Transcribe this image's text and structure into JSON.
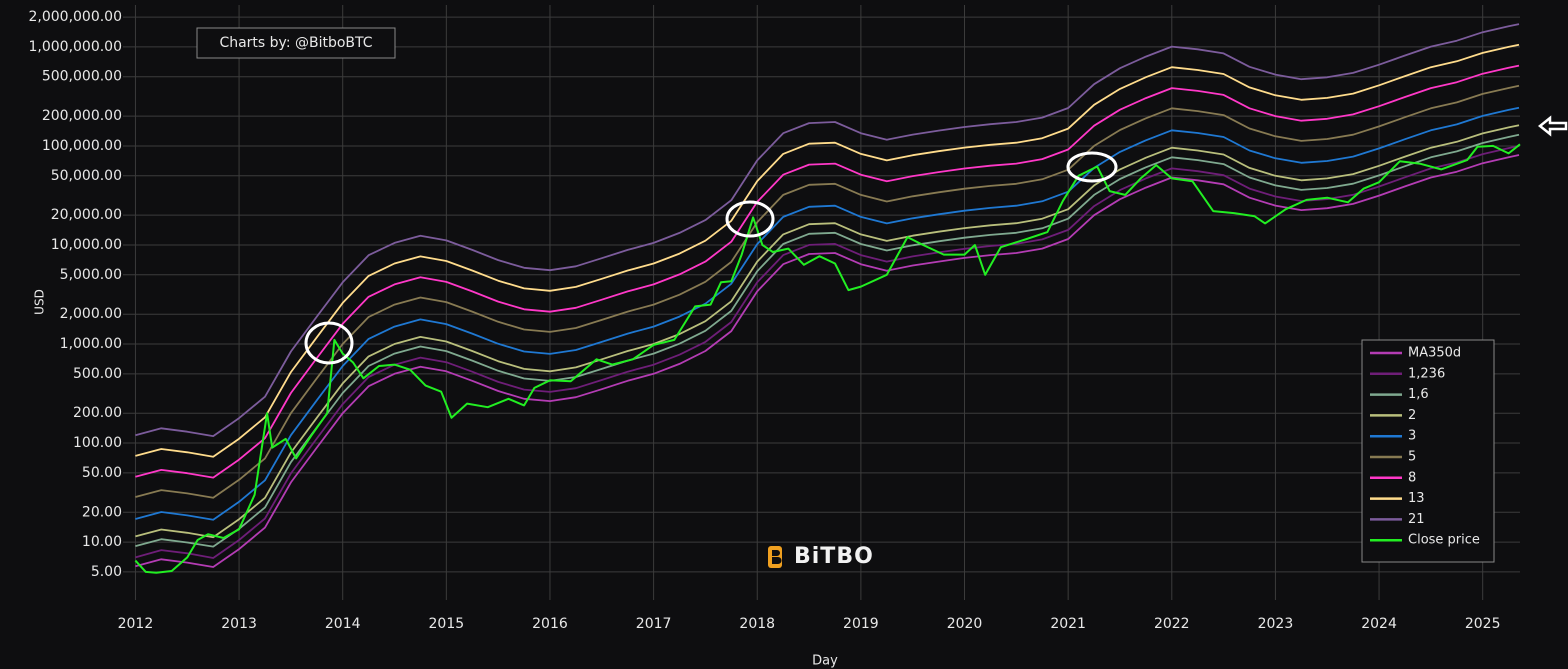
{
  "chart_data": {
    "type": "line",
    "annotation": "Charts by: @BitboBTC",
    "watermark": "BiTBO",
    "ylabel": "USD",
    "xlabel": "Day",
    "log_y": true,
    "grid": true,
    "legend": "lower right",
    "xlim": [
      2011.88,
      2025.36
    ],
    "xticks": [
      2012,
      2013,
      2014,
      2015,
      2016,
      2017,
      2018,
      2019,
      2020,
      2021,
      2022,
      2023,
      2024,
      2025
    ],
    "ylim": [
      2.6,
      2650000
    ],
    "yticks": [
      {
        "value": 2000000,
        "label": "2,000,000.00"
      },
      {
        "value": 1000000,
        "label": "1,000,000.00"
      },
      {
        "value": 500000,
        "label": "500,000.00"
      },
      {
        "value": 200000,
        "label": "200,000.00"
      },
      {
        "value": 100000,
        "label": "100,000.00"
      },
      {
        "value": 50000,
        "label": "50,000.00"
      },
      {
        "value": 20000,
        "label": "20,000.00"
      },
      {
        "value": 10000,
        "label": "10,000.00"
      },
      {
        "value": 5000,
        "label": "5,000.00"
      },
      {
        "value": 2000,
        "label": "2,000.00"
      },
      {
        "value": 1000,
        "label": "1,000.00"
      },
      {
        "value": 500,
        "label": "500.00"
      },
      {
        "value": 200,
        "label": "200.00"
      },
      {
        "value": 100,
        "label": "100.00"
      },
      {
        "value": 50,
        "label": "50.00"
      },
      {
        "value": 20,
        "label": "20.00"
      },
      {
        "value": 10,
        "label": "10.00"
      },
      {
        "value": 5,
        "label": "5.00"
      }
    ],
    "x": [
      2012,
      2012.25,
      2012.5,
      2012.75,
      2013,
      2013.25,
      2013.5,
      2013.75,
      2014,
      2014.25,
      2014.5,
      2014.75,
      2015,
      2015.25,
      2015.5,
      2015.75,
      2016,
      2016.25,
      2016.5,
      2016.75,
      2017,
      2017.25,
      2017.5,
      2017.75,
      2018,
      2018.25,
      2018.5,
      2018.75,
      2019,
      2019.25,
      2019.5,
      2019.75,
      2020,
      2020.25,
      2020.5,
      2020.75,
      2021,
      2021.25,
      2021.5,
      2021.75,
      2022,
      2022.25,
      2022.5,
      2022.75,
      2023,
      2023.25,
      2023.5,
      2023.75,
      2024,
      2024.25,
      2024.5,
      2024.75,
      2025,
      2025.25,
      2025.35
    ],
    "series": [
      {
        "name": "MA350d",
        "color": "#b43cb4",
        "values": [
          5.7,
          6.7,
          6.2,
          5.6,
          8.5,
          14,
          40,
          90,
          200,
          375,
          500,
          590,
          530,
          425,
          335,
          280,
          265,
          290,
          350,
          425,
          500,
          630,
          850,
          1350,
          3400,
          6400,
          8100,
          8300,
          6400,
          5500,
          6200,
          6800,
          7400,
          7900,
          8300,
          9200,
          11500,
          20000,
          29000,
          38000,
          48000,
          45000,
          41000,
          30000,
          25000,
          22500,
          23500,
          26000,
          31500,
          39000,
          48000,
          55000,
          67000,
          77000,
          81000
        ]
      },
      {
        "name": "1,236",
        "color": "#6e1e78",
        "values": [
          7.0,
          8.3,
          7.7,
          6.9,
          10.5,
          17.3,
          49.4,
          111,
          247,
          464,
          618,
          729,
          655,
          525,
          414,
          346,
          328,
          358,
          433,
          525,
          618,
          779,
          1051,
          1669,
          4202,
          7910,
          10012,
          10259,
          7910,
          6798,
          7663,
          8405,
          9146,
          9764,
          10259,
          11371,
          14214,
          24720,
          35844,
          46968,
          59328,
          55620,
          50676,
          37080,
          30900,
          27810,
          29046,
          32136,
          38934,
          48204,
          59328,
          67980,
          82812,
          95172,
          100116
        ]
      },
      {
        "name": "1,6",
        "color": "#7fa98f",
        "values": [
          9.1,
          10.7,
          9.9,
          9.0,
          13.6,
          22.4,
          64,
          144,
          320,
          600,
          800,
          944,
          848,
          680,
          536,
          448,
          424,
          464,
          560,
          680,
          800,
          1008,
          1360,
          2160,
          5440,
          10240,
          12960,
          13280,
          10240,
          8800,
          9920,
          10880,
          11840,
          12640,
          13280,
          14720,
          18400,
          32000,
          46400,
          60800,
          76800,
          72000,
          65600,
          48000,
          40000,
          36000,
          37600,
          41600,
          50400,
          62400,
          76800,
          88000,
          107200,
          123200,
          129600
        ]
      },
      {
        "name": "2",
        "color": "#b9bf7c",
        "values": [
          11.4,
          13.4,
          12.4,
          11.2,
          17,
          28,
          80,
          180,
          400,
          750,
          1000,
          1180,
          1060,
          850,
          670,
          560,
          530,
          580,
          700,
          850,
          1000,
          1260,
          1700,
          2700,
          6800,
          12800,
          16200,
          16600,
          12800,
          11000,
          12400,
          13600,
          14800,
          15800,
          16600,
          18400,
          23000,
          40000,
          58000,
          76000,
          96000,
          90000,
          82000,
          60000,
          50000,
          45000,
          47000,
          52000,
          63000,
          78000,
          96000,
          110000,
          134000,
          154000,
          162000
        ]
      },
      {
        "name": "3",
        "color": "#1f78d2",
        "values": [
          17.1,
          20.1,
          18.6,
          16.8,
          25.5,
          42,
          120,
          270,
          600,
          1125,
          1500,
          1770,
          1590,
          1275,
          1005,
          840,
          795,
          870,
          1050,
          1275,
          1500,
          1890,
          2550,
          4050,
          10200,
          19200,
          24300,
          24900,
          19200,
          16500,
          18600,
          20400,
          22200,
          23700,
          24900,
          27600,
          34500,
          60000,
          87000,
          114000,
          144000,
          135000,
          123000,
          90000,
          75000,
          67500,
          70500,
          78000,
          94500,
          117000,
          144000,
          165000,
          201000,
          231000,
          243000
        ]
      },
      {
        "name": "5",
        "color": "#877a52",
        "values": [
          28.5,
          33.5,
          31,
          28,
          42.5,
          70,
          200,
          450,
          1000,
          1875,
          2500,
          2950,
          2650,
          2125,
          1675,
          1400,
          1325,
          1450,
          1750,
          2125,
          2500,
          3150,
          4250,
          6750,
          17000,
          32000,
          40500,
          41500,
          32000,
          27500,
          31000,
          34000,
          37000,
          39500,
          41500,
          46000,
          57500,
          100000,
          145000,
          190000,
          240000,
          225000,
          205000,
          150000,
          125000,
          112500,
          117500,
          130000,
          157500,
          195000,
          240000,
          275000,
          335000,
          385000,
          405000
        ]
      },
      {
        "name": "8",
        "color": "#ff38c8",
        "values": [
          45.6,
          53.6,
          49.6,
          44.8,
          68,
          112,
          320,
          720,
          1600,
          3000,
          4000,
          4720,
          4240,
          3400,
          2680,
          2240,
          2120,
          2320,
          2800,
          3400,
          4000,
          5040,
          6800,
          10800,
          27200,
          51200,
          64800,
          66400,
          51200,
          44000,
          49600,
          54400,
          59200,
          63200,
          66400,
          73600,
          92000,
          160000,
          232000,
          304000,
          384000,
          360000,
          328000,
          240000,
          200000,
          180000,
          188000,
          208000,
          252000,
          312000,
          384000,
          440000,
          536000,
          616000,
          648000
        ]
      },
      {
        "name": "13",
        "color": "#ffdc8c",
        "values": [
          74.1,
          87.1,
          80.6,
          72.8,
          110.5,
          182,
          520,
          1170,
          2600,
          4875,
          6500,
          7670,
          6890,
          5525,
          4355,
          3640,
          3445,
          3770,
          4550,
          5525,
          6500,
          8190,
          11050,
          17550,
          44200,
          83200,
          105300,
          107900,
          83200,
          71500,
          80600,
          88400,
          96200,
          102700,
          107900,
          119600,
          149500,
          260000,
          377000,
          494000,
          624000,
          585000,
          533000,
          390000,
          325000,
          292500,
          305500,
          338000,
          409500,
          507000,
          624000,
          715000,
          871000,
          1001000,
          1053000
        ]
      },
      {
        "name": "21",
        "color": "#7c5c9c",
        "values": [
          119.7,
          140.7,
          130.2,
          117.6,
          178.5,
          294,
          840,
          1890,
          4200,
          7875,
          10500,
          12390,
          11130,
          8925,
          7035,
          5880,
          5565,
          6090,
          7350,
          8925,
          10500,
          13230,
          17850,
          28350,
          71400,
          134400,
          170100,
          174300,
          134400,
          115500,
          130200,
          142800,
          155400,
          165900,
          174300,
          193200,
          241500,
          420000,
          609000,
          798000,
          1008000,
          945000,
          861000,
          630000,
          525000,
          472500,
          493500,
          546000,
          661500,
          819000,
          1008000,
          1155000,
          1407000,
          1617000,
          1701000
        ]
      },
      {
        "name": "Close price",
        "color": "#22ee22",
        "x": [
          2012.0,
          2012.1,
          2012.2,
          2012.35,
          2012.5,
          2012.6,
          2012.7,
          2012.85,
          2013.0,
          2013.15,
          2013.27,
          2013.32,
          2013.45,
          2013.55,
          2013.7,
          2013.85,
          2013.92,
          2014.0,
          2014.1,
          2014.2,
          2014.35,
          2014.5,
          2014.65,
          2014.8,
          2014.95,
          2015.05,
          2015.2,
          2015.4,
          2015.6,
          2015.75,
          2015.85,
          2016.0,
          2016.2,
          2016.45,
          2016.6,
          2016.8,
          2017.0,
          2017.2,
          2017.4,
          2017.55,
          2017.65,
          2017.75,
          2017.85,
          2017.96,
          2018.05,
          2018.15,
          2018.3,
          2018.45,
          2018.6,
          2018.75,
          2018.88,
          2019.0,
          2019.25,
          2019.45,
          2019.6,
          2019.8,
          2020.0,
          2020.1,
          2020.2,
          2020.35,
          2020.6,
          2020.8,
          2020.95,
          2021.1,
          2021.28,
          2021.4,
          2021.55,
          2021.7,
          2021.85,
          2022.0,
          2022.2,
          2022.4,
          2022.6,
          2022.8,
          2022.9,
          2023.1,
          2023.3,
          2023.5,
          2023.7,
          2023.85,
          2024.0,
          2024.2,
          2024.4,
          2024.6,
          2024.85,
          2024.95,
          2025.1,
          2025.25,
          2025.36
        ],
        "values": [
          6.5,
          5,
          4.9,
          5.1,
          7,
          10.5,
          12,
          11,
          13.5,
          30,
          200,
          90,
          110,
          70,
          120,
          200,
          1100,
          800,
          650,
          450,
          600,
          620,
          550,
          380,
          330,
          180,
          250,
          230,
          280,
          240,
          360,
          430,
          420,
          700,
          620,
          700,
          980,
          1100,
          2400,
          2500,
          4200,
          4300,
          8000,
          19000,
          10000,
          8500,
          9200,
          6300,
          7700,
          6500,
          3500,
          3800,
          5000,
          12000,
          10000,
          8000,
          8000,
          10000,
          5000,
          9500,
          11500,
          13500,
          28000,
          50000,
          62000,
          35000,
          32000,
          47000,
          64000,
          47000,
          44000,
          22000,
          21000,
          19500,
          16500,
          23000,
          28500,
          30000,
          27000,
          37000,
          43000,
          70000,
          66000,
          58000,
          72000,
          98000,
          100000,
          84000,
          104000
        ]
      }
    ]
  }
}
